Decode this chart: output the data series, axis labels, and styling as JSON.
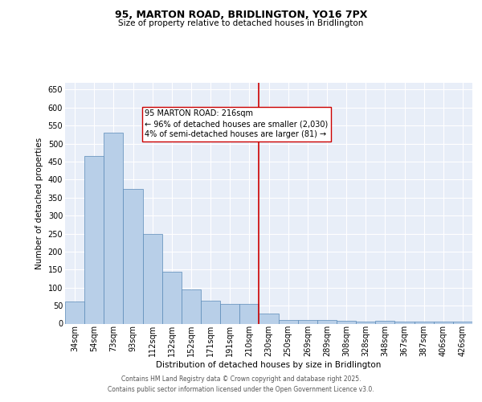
{
  "title": "95, MARTON ROAD, BRIDLINGTON, YO16 7PX",
  "subtitle": "Size of property relative to detached houses in Bridlington",
  "xlabel": "Distribution of detached houses by size in Bridlington",
  "ylabel": "Number of detached properties",
  "categories": [
    "34sqm",
    "54sqm",
    "73sqm",
    "93sqm",
    "112sqm",
    "132sqm",
    "152sqm",
    "171sqm",
    "191sqm",
    "210sqm",
    "230sqm",
    "250sqm",
    "269sqm",
    "289sqm",
    "308sqm",
    "328sqm",
    "348sqm",
    "367sqm",
    "387sqm",
    "406sqm",
    "426sqm"
  ],
  "bar_values": [
    62,
    465,
    530,
    375,
    250,
    143,
    94,
    63,
    55,
    55,
    27,
    11,
    11,
    10,
    8,
    5,
    7,
    5,
    5,
    5,
    5
  ],
  "bar_color": "#b8cfe8",
  "bar_edge_color": "#5a8ab8",
  "background_color": "#e8eef8",
  "grid_color": "#ffffff",
  "vline_color": "#cc0000",
  "vline_position": 9.5,
  "annotation_text": "95 MARTON ROAD: 216sqm\n← 96% of detached houses are smaller (2,030)\n4% of semi-detached houses are larger (81) →",
  "annotation_box_facecolor": "#ffffff",
  "annotation_box_edgecolor": "#cc0000",
  "footer_line1": "Contains HM Land Registry data © Crown copyright and database right 2025.",
  "footer_line2": "Contains public sector information licensed under the Open Government Licence v3.0.",
  "ylim": [
    0,
    670
  ],
  "yticks": [
    0,
    50,
    100,
    150,
    200,
    250,
    300,
    350,
    400,
    450,
    500,
    550,
    600,
    650
  ],
  "title_fontsize": 9,
  "subtitle_fontsize": 7.5,
  "xlabel_fontsize": 7.5,
  "ylabel_fontsize": 7.5,
  "tick_fontsize": 7,
  "annotation_fontsize": 7,
  "footer_fontsize": 5.5
}
